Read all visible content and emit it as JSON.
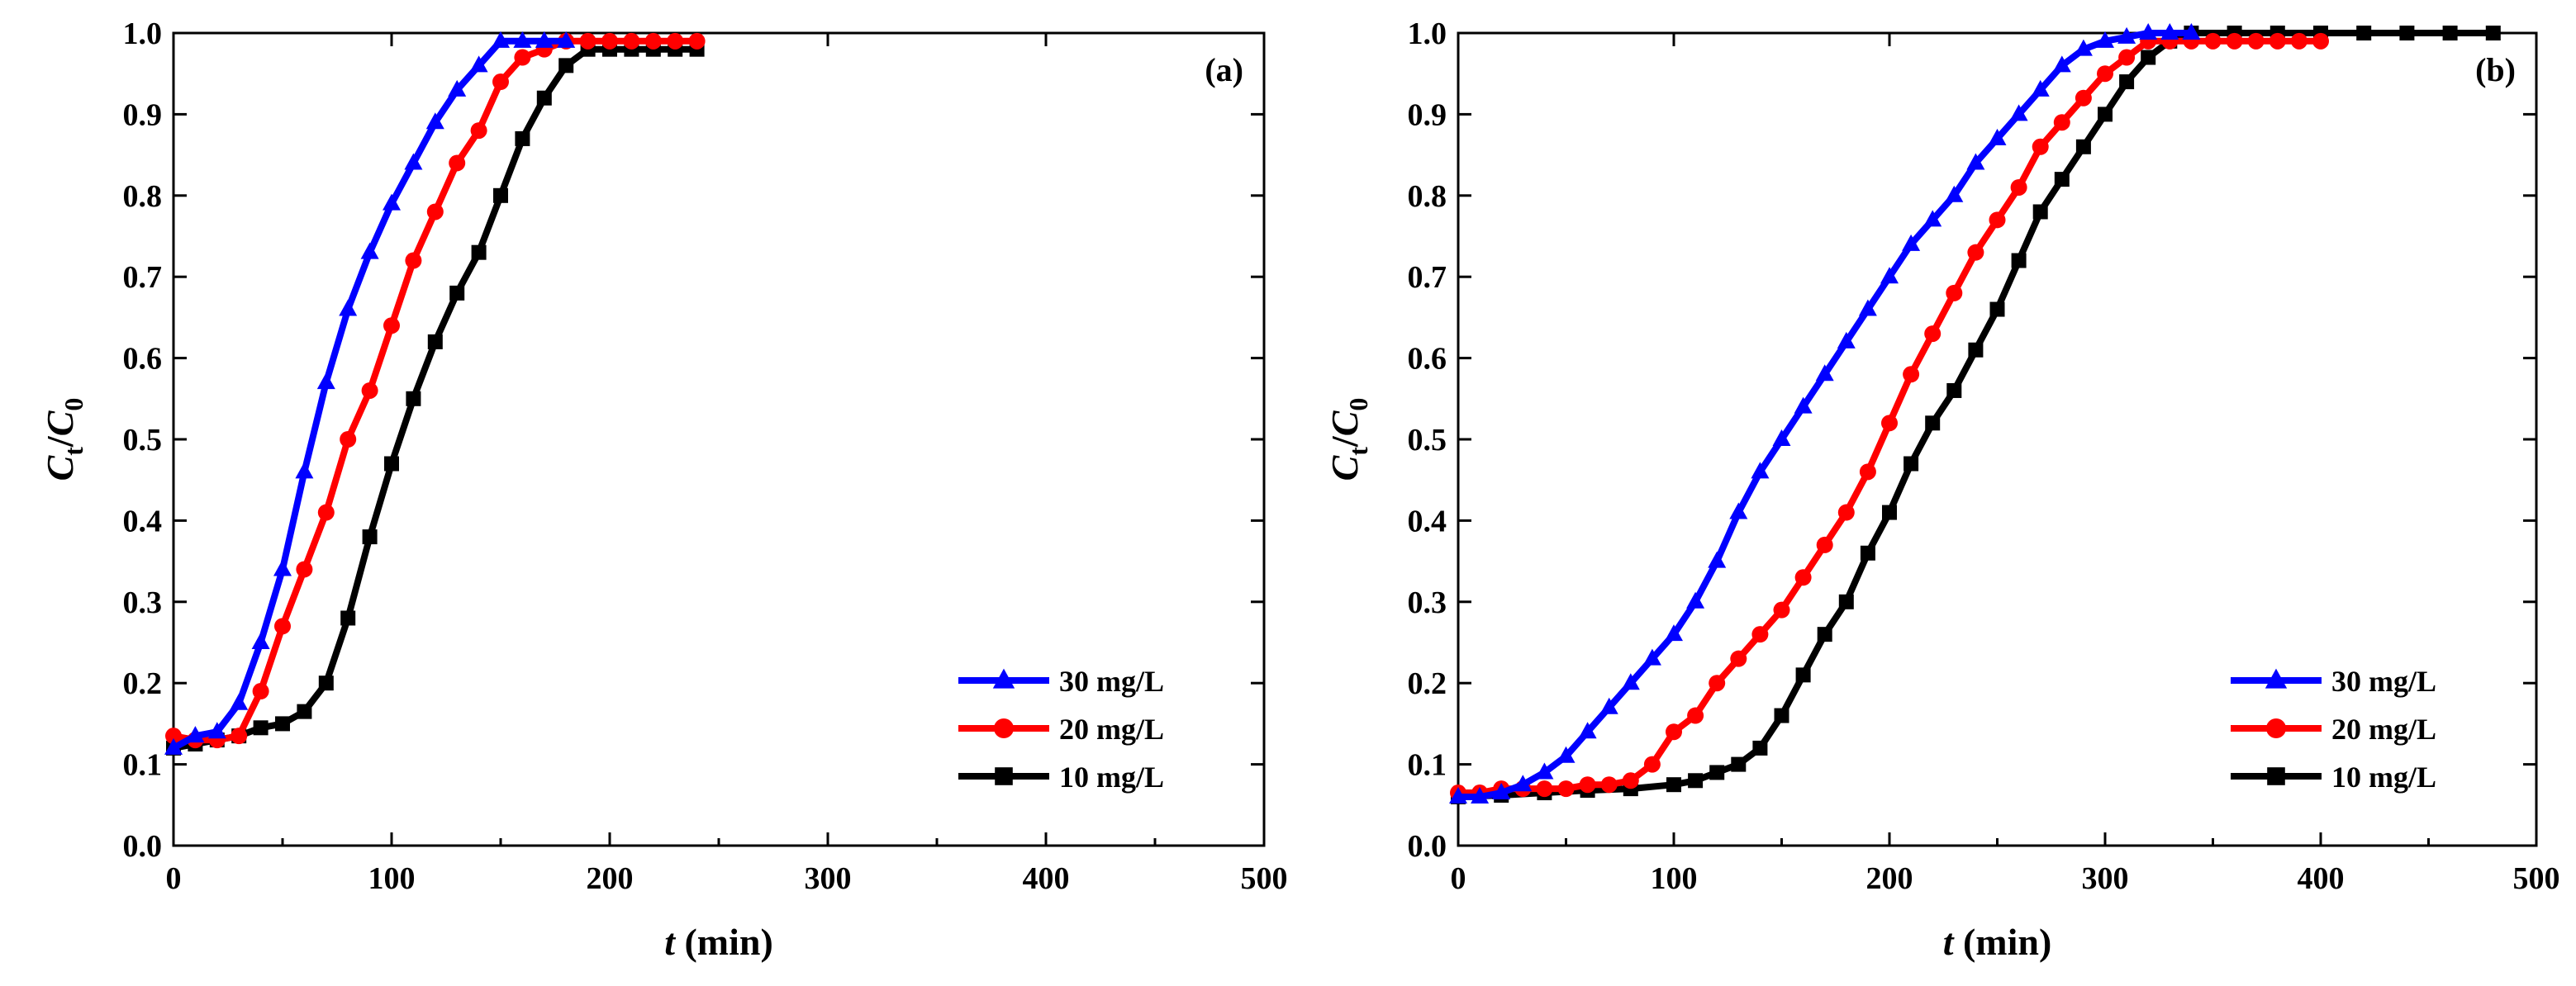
{
  "chart_data": [
    {
      "type": "line",
      "panel_label": "(a)",
      "xlabel_var": "t",
      "xlabel_unit": " (min)",
      "ylabel_var": "C",
      "ylabel_sub_num": "t",
      "ylabel_slash": "/",
      "ylabel_den": "C",
      "ylabel_sub_den": "0",
      "xlim": [
        0,
        500
      ],
      "ylim": [
        0.0,
        1.0
      ],
      "xticks": [
        "0",
        "100",
        "200",
        "300",
        "400",
        "500"
      ],
      "yticks": [
        "0.0",
        "0.1",
        "0.2",
        "0.3",
        "0.4",
        "0.5",
        "0.6",
        "0.7",
        "0.8",
        "0.9",
        "1.0"
      ],
      "grid": false,
      "legend_position": "bottom-right",
      "series": [
        {
          "name": "30 mg/L",
          "color": "#0000ff",
          "marker": "triangle",
          "x": [
            0,
            10,
            20,
            30,
            40,
            50,
            60,
            70,
            80,
            90,
            100,
            110,
            120,
            130,
            140,
            150,
            160,
            170,
            180
          ],
          "y": [
            0.12,
            0.135,
            0.14,
            0.175,
            0.25,
            0.34,
            0.46,
            0.57,
            0.66,
            0.73,
            0.79,
            0.84,
            0.89,
            0.93,
            0.96,
            0.99,
            0.99,
            0.99,
            0.99
          ]
        },
        {
          "name": "20 mg/L",
          "color": "#ff0000",
          "marker": "circle",
          "x": [
            0,
            10,
            20,
            30,
            40,
            50,
            60,
            70,
            80,
            90,
            100,
            110,
            120,
            130,
            140,
            150,
            160,
            170,
            180,
            190,
            200,
            210,
            220,
            230,
            240
          ],
          "y": [
            0.135,
            0.13,
            0.13,
            0.135,
            0.19,
            0.27,
            0.34,
            0.41,
            0.5,
            0.56,
            0.64,
            0.72,
            0.78,
            0.84,
            0.88,
            0.94,
            0.97,
            0.98,
            0.99,
            0.99,
            0.99,
            0.99,
            0.99,
            0.99,
            0.99
          ]
        },
        {
          "name": "10 mg/L",
          "color": "#000000",
          "marker": "square",
          "x": [
            0,
            10,
            20,
            30,
            40,
            50,
            60,
            70,
            80,
            90,
            100,
            110,
            120,
            130,
            140,
            150,
            160,
            170,
            180,
            190,
            200,
            210,
            220,
            230,
            240
          ],
          "y": [
            0.12,
            0.125,
            0.13,
            0.135,
            0.145,
            0.15,
            0.165,
            0.2,
            0.28,
            0.38,
            0.47,
            0.55,
            0.62,
            0.68,
            0.73,
            0.8,
            0.87,
            0.92,
            0.96,
            0.98,
            0.98,
            0.98,
            0.98,
            0.98,
            0.98
          ]
        }
      ]
    },
    {
      "type": "line",
      "panel_label": "(b)",
      "xlabel_var": "t",
      "xlabel_unit": " (min)",
      "ylabel_var": "C",
      "ylabel_sub_num": "t",
      "ylabel_slash": "/",
      "ylabel_den": "C",
      "ylabel_sub_den": "0",
      "xlim": [
        0,
        500
      ],
      "ylim": [
        0.0,
        1.0
      ],
      "xticks": [
        "0",
        "100",
        "200",
        "300",
        "400",
        "500"
      ],
      "yticks": [
        "0.0",
        "0.1",
        "0.2",
        "0.3",
        "0.4",
        "0.5",
        "0.6",
        "0.7",
        "0.8",
        "0.9",
        "1.0"
      ],
      "grid": false,
      "legend_position": "bottom-right",
      "series": [
        {
          "name": "30 mg/L",
          "color": "#0000ff",
          "marker": "triangle",
          "x": [
            0,
            10,
            20,
            30,
            40,
            50,
            60,
            70,
            80,
            90,
            100,
            110,
            120,
            130,
            140,
            150,
            160,
            170,
            180,
            190,
            200,
            210,
            220,
            230,
            240,
            250,
            260,
            270,
            280,
            290,
            300,
            310,
            320,
            330,
            340
          ],
          "y": [
            0.06,
            0.06,
            0.065,
            0.075,
            0.09,
            0.11,
            0.14,
            0.17,
            0.2,
            0.23,
            0.26,
            0.3,
            0.35,
            0.41,
            0.46,
            0.5,
            0.54,
            0.58,
            0.62,
            0.66,
            0.7,
            0.74,
            0.77,
            0.8,
            0.84,
            0.87,
            0.9,
            0.93,
            0.96,
            0.98,
            0.99,
            0.995,
            1.0,
            1.0,
            1.0
          ]
        },
        {
          "name": "20 mg/L",
          "color": "#ff0000",
          "marker": "circle",
          "x": [
            0,
            10,
            20,
            30,
            40,
            50,
            60,
            70,
            80,
            90,
            100,
            110,
            120,
            130,
            140,
            150,
            160,
            170,
            180,
            190,
            200,
            210,
            220,
            230,
            240,
            250,
            260,
            270,
            280,
            290,
            300,
            310,
            320,
            330,
            340,
            350,
            360,
            370,
            380,
            390,
            400
          ],
          "y": [
            0.065,
            0.065,
            0.07,
            0.07,
            0.07,
            0.07,
            0.075,
            0.075,
            0.08,
            0.1,
            0.14,
            0.16,
            0.2,
            0.23,
            0.26,
            0.29,
            0.33,
            0.37,
            0.41,
            0.46,
            0.52,
            0.58,
            0.63,
            0.68,
            0.73,
            0.77,
            0.81,
            0.86,
            0.89,
            0.92,
            0.95,
            0.97,
            0.99,
            0.99,
            0.99,
            0.99,
            0.99,
            0.99,
            0.99,
            0.99,
            0.99
          ]
        },
        {
          "name": "10 mg/L",
          "color": "#000000",
          "marker": "square",
          "x": [
            0,
            20,
            40,
            60,
            80,
            100,
            110,
            120,
            130,
            140,
            150,
            160,
            170,
            180,
            190,
            200,
            210,
            220,
            230,
            240,
            250,
            260,
            270,
            280,
            290,
            300,
            310,
            320,
            330,
            340,
            360,
            380,
            400,
            420,
            440,
            460,
            480
          ],
          "y": [
            0.06,
            0.062,
            0.065,
            0.068,
            0.07,
            0.075,
            0.08,
            0.09,
            0.1,
            0.12,
            0.16,
            0.21,
            0.26,
            0.3,
            0.36,
            0.41,
            0.47,
            0.52,
            0.56,
            0.61,
            0.66,
            0.72,
            0.78,
            0.82,
            0.86,
            0.9,
            0.94,
            0.97,
            0.99,
            1.0,
            1.0,
            1.0,
            1.0,
            1.0,
            1.0,
            1.0,
            1.0
          ]
        }
      ]
    }
  ]
}
